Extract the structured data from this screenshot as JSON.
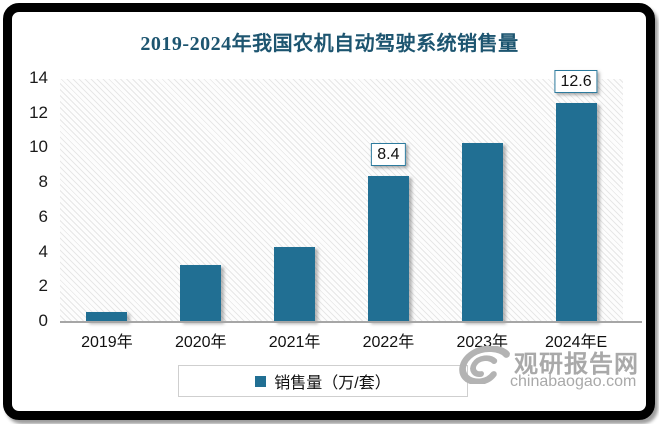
{
  "window": {
    "frame_color": "#000000",
    "background": "#ffffff"
  },
  "chart_data": {
    "type": "bar",
    "title": "2019-2024年我国农机自动驾驶系统销售量",
    "title_color": "#1d5570",
    "categories": [
      "2019年",
      "2020年",
      "2021年",
      "2022年",
      "2023年",
      "2024年E"
    ],
    "values": [
      0.6,
      3.3,
      4.3,
      8.4,
      10.3,
      12.6
    ],
    "bar_labels": [
      "",
      "",
      "",
      "8.4",
      "",
      "12.6"
    ],
    "bar_color": "#216f93",
    "label_box_border_color": "#2d7b9e",
    "ylim": [
      0,
      14
    ],
    "yticks": [
      0,
      2,
      4,
      6,
      8,
      10,
      12,
      14
    ],
    "xlabel": "",
    "ylabel": "",
    "grid": "off",
    "plot_background": "diagonal-hatch",
    "legend": {
      "position": "bottom",
      "items": [
        {
          "label": "销售量（万/套）",
          "swatch_color": "#216f93"
        }
      ]
    }
  },
  "watermark": {
    "logo": "swirl-logo",
    "brand": "观研报告网",
    "domain": "chinabaogao.com",
    "color": "#a9a9a9"
  }
}
